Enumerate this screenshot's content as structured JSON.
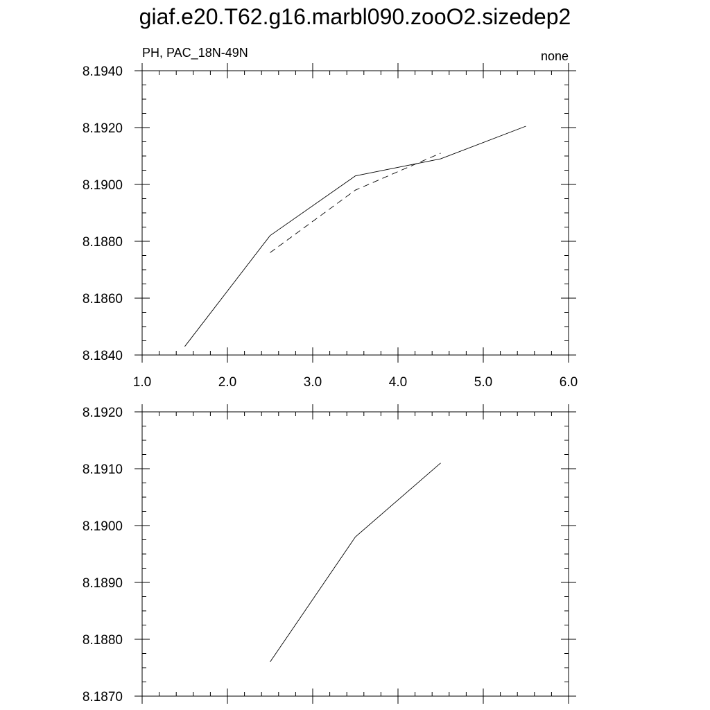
{
  "figure": {
    "title": "giaf.e20.T62.g16.marbl090.zooO2.sizedep2"
  },
  "chart_data": [
    {
      "type": "line",
      "left_label": "PH, PAC_18N-49N",
      "right_label": "none",
      "xlim": [
        1.0,
        6.0
      ],
      "ylim": [
        8.184,
        8.194
      ],
      "x_ticks": [
        1.0,
        2.0,
        3.0,
        4.0,
        5.0,
        6.0
      ],
      "x_tick_labels": [
        "1.0",
        "2.0",
        "3.0",
        "4.0",
        "5.0",
        "6.0"
      ],
      "x_minor_step": 0.2,
      "y_ticks": [
        8.184,
        8.186,
        8.188,
        8.19,
        8.192,
        8.194
      ],
      "y_tick_labels": [
        "8.1840",
        "8.1860",
        "8.1880",
        "8.1900",
        "8.1920",
        "8.1940"
      ],
      "y_minor_step": 0.0005,
      "series": [
        {
          "style": "solid",
          "x": [
            1.5,
            2.5,
            3.5,
            4.5,
            5.5
          ],
          "y": [
            8.1843,
            8.1882,
            8.1903,
            8.1909,
            8.19205
          ]
        },
        {
          "style": "dashed",
          "x": [
            2.5,
            3.5,
            4.5
          ],
          "y": [
            8.1876,
            8.1898,
            8.1911
          ]
        }
      ]
    },
    {
      "type": "line",
      "xlim": [
        1.0,
        6.0
      ],
      "ylim": [
        8.187,
        8.192
      ],
      "x_ticks": [
        1.0,
        2.0,
        3.0,
        4.0,
        5.0,
        6.0
      ],
      "x_minor_step": 0.2,
      "y_ticks": [
        8.187,
        8.188,
        8.189,
        8.19,
        8.191,
        8.192
      ],
      "y_tick_labels": [
        "8.1870",
        "8.1880",
        "8.1890",
        "8.1900",
        "8.1910",
        "8.1920"
      ],
      "y_minor_step": 0.00025,
      "series": [
        {
          "style": "solid",
          "x": [
            2.5,
            3.5,
            4.5
          ],
          "y": [
            8.1876,
            8.1898,
            8.1911
          ]
        }
      ]
    }
  ]
}
